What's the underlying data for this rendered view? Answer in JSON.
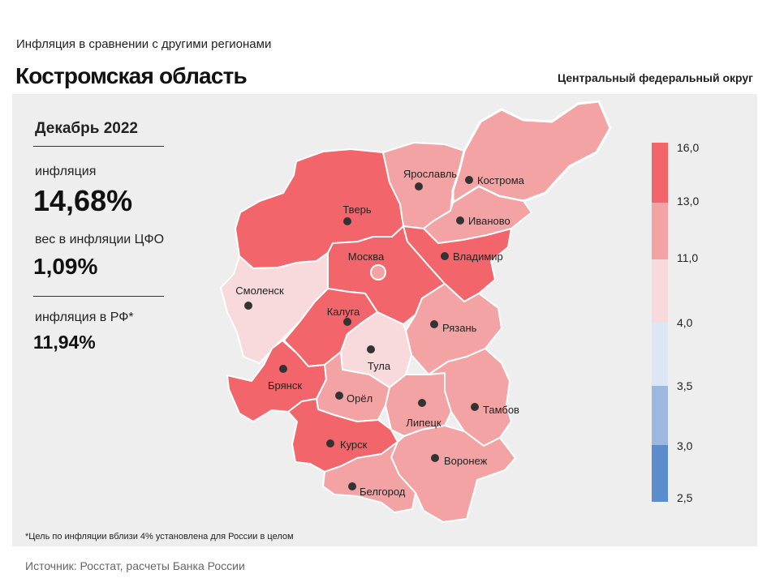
{
  "header": {
    "subtitle": "Инфляция  в сравнении  с другими  регионами",
    "title": "Костромская область",
    "district": "Центральный федеральный округ"
  },
  "stats": {
    "period": "Декабрь 2022",
    "inflation_label": "инфляция",
    "inflation_value": "14,68%",
    "weight_label": "вес в инфляции  ЦФО",
    "weight_value": "1,09%",
    "rf_label": "инфляция  в РФ*",
    "rf_value": "11,94%"
  },
  "legend": {
    "ticks": [
      "16,0",
      "13,0",
      "11,0",
      "4,0",
      "3,5",
      "3,0",
      "2,5"
    ],
    "colors": [
      "#f2666b",
      "#f4a3a5",
      "#f8dadc",
      "#dde6f3",
      "#9db8de",
      "#5b8ccc"
    ]
  },
  "map": {
    "regions": [
      {
        "name": "Кострома",
        "color": "#f2666b",
        "highlighted": true
      },
      {
        "name": "Ярославль",
        "color": "#f4a3a5"
      },
      {
        "name": "Тверь",
        "color": "#f4a3a5"
      },
      {
        "name": "Иваново",
        "color": "#f4a3a5"
      },
      {
        "name": "Москва",
        "color": "#f2666b",
        "capital": true
      },
      {
        "name": "Владимир",
        "color": "#f2666b"
      },
      {
        "name": "Смоленск",
        "color": "#f8dadc"
      },
      {
        "name": "Калуга",
        "color": "#f2666b"
      },
      {
        "name": "Рязань",
        "color": "#f4a3a5"
      },
      {
        "name": "Тула",
        "color": "#f8dadc"
      },
      {
        "name": "Брянск",
        "color": "#f2666b"
      },
      {
        "name": "Орёл",
        "color": "#f4a3a5"
      },
      {
        "name": "Липецк",
        "color": "#f4a3a5"
      },
      {
        "name": "Тамбов",
        "color": "#f4a3a5"
      },
      {
        "name": "Курск",
        "color": "#f2666b"
      },
      {
        "name": "Воронеж",
        "color": "#f4a3a5"
      },
      {
        "name": "Белгород",
        "color": "#f4a3a5"
      }
    ]
  },
  "footer": {
    "footnote": "*Цель по инфляции вблизи 4% установлена для России в целом",
    "source": "Источник: Росстат, расчеты Банка России"
  }
}
